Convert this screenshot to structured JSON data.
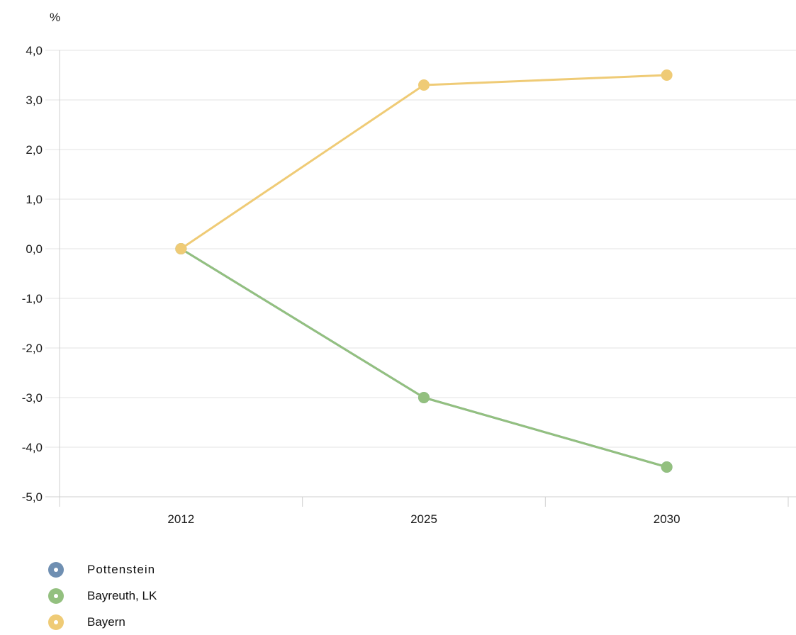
{
  "chart_data": {
    "type": "line",
    "unit_label": "%",
    "categories": [
      "2012",
      "2025",
      "2030"
    ],
    "ylim": [
      -5.0,
      4.0
    ],
    "yticks": [
      4.0,
      3.0,
      2.0,
      1.0,
      0.0,
      -1.0,
      -2.0,
      -3.0,
      -4.0,
      -5.0
    ],
    "ytick_labels": [
      "4,0",
      "3,0",
      "2,0",
      "1,0",
      "0,0",
      "-1,0",
      "-2,0",
      "-3,0",
      "-4,0",
      "-5,0"
    ],
    "grid": true,
    "legend_position": "bottom-left",
    "series": [
      {
        "name": "Pottenstein",
        "color": "#6f8fb2",
        "values": [
          0.0,
          -3.0,
          -4.4
        ]
      },
      {
        "name": "Bayreuth, LK",
        "color": "#93c07f",
        "values": [
          0.0,
          -3.0,
          -4.4
        ]
      },
      {
        "name": "Bayern",
        "color": "#efcb76",
        "values": [
          0.0,
          3.3,
          3.5
        ]
      }
    ]
  }
}
